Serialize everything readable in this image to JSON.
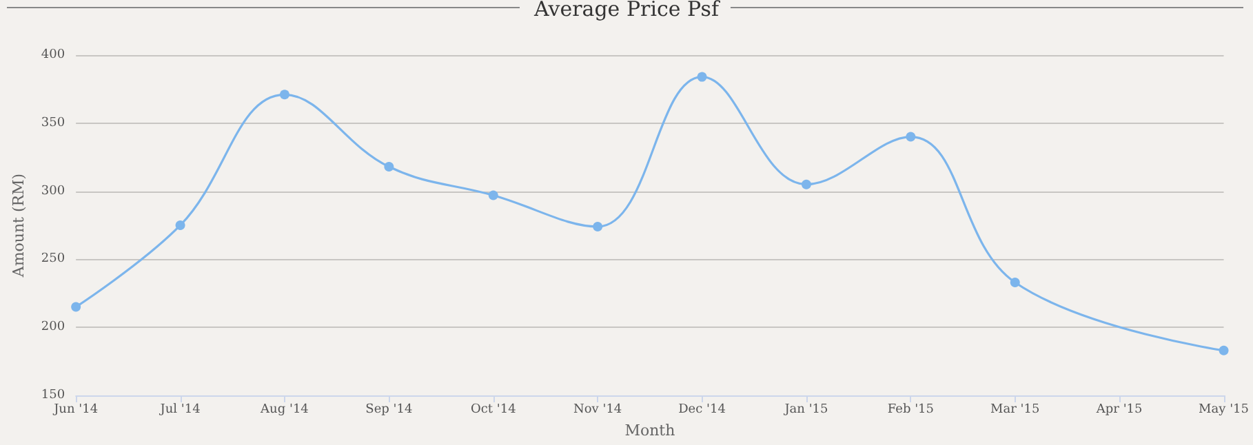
{
  "chart_data": {
    "type": "line",
    "title": "Average Price Psf",
    "xlabel": "Month",
    "ylabel": "Amount (RM)",
    "categories": [
      "Jun '14",
      "Jul '14",
      "Aug '14",
      "Sep '14",
      "Oct '14",
      "Nov '14",
      "Dec '14",
      "Jan '15",
      "Feb '15",
      "Mar '15",
      "Apr '15",
      "May '15"
    ],
    "series": [
      {
        "color": "#7cb5ec",
        "values": [
          215,
          275,
          371,
          318,
          297,
          274,
          384,
          305,
          340,
          233,
          null,
          183
        ]
      }
    ],
    "ylim": [
      150,
      400
    ],
    "yticks": [
      150,
      200,
      250,
      300,
      350,
      400
    ],
    "grid": "y",
    "marker": "circle",
    "line_style": "solid"
  }
}
